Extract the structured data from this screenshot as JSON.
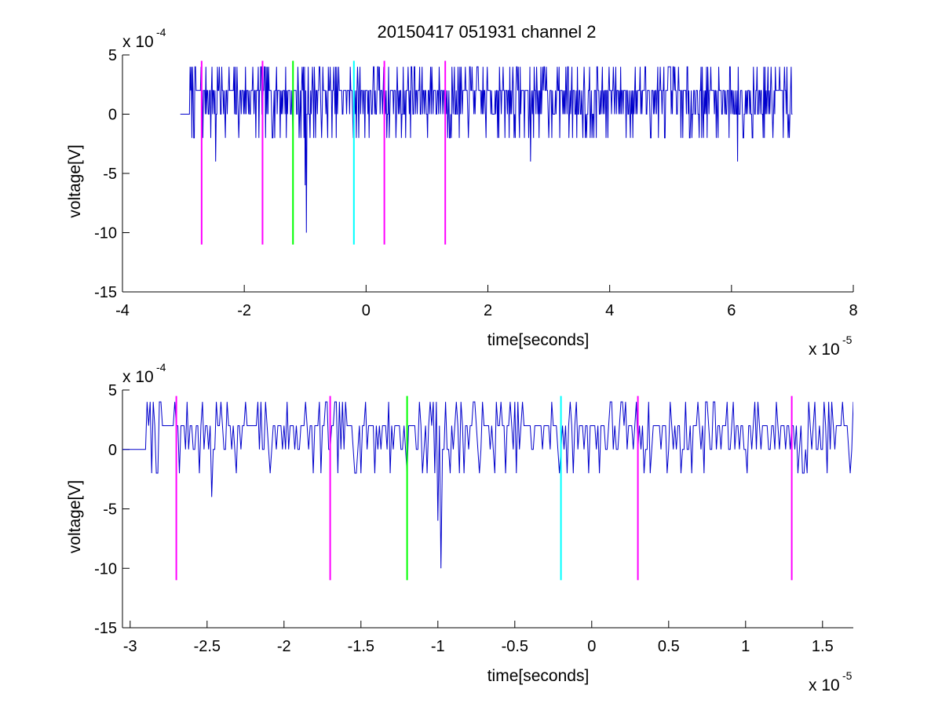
{
  "figure_title": "20150417 051931 channel 2",
  "colors": {
    "signal": "#0000cc",
    "magenta": "#ff00ff",
    "green": "#00ff00",
    "cyan": "#00ffff",
    "axis": "#000000"
  },
  "chart_data": [
    {
      "type": "line",
      "title": "20150417 051931 channel 2",
      "xlabel": "time[seconds]",
      "ylabel": "voltage[V]",
      "xlim": [
        -4e-05,
        8e-05
      ],
      "ylim": [
        -0.0015,
        0.0005
      ],
      "xticks": [
        -4e-05,
        -2e-05,
        0,
        2e-05,
        4e-05,
        6e-05,
        8e-05
      ],
      "xtick_labels": [
        "-4",
        "-2",
        "0",
        "2",
        "4",
        "6",
        "8"
      ],
      "yticks": [
        0.0005,
        0,
        -0.0005,
        -0.001,
        -0.0015
      ],
      "ytick_labels": [
        "5",
        "0",
        "-5",
        "-10",
        "-15"
      ],
      "x_exponent": {
        "base": "x 10",
        "exp": "-5"
      },
      "y_exponent": {
        "base": "x 10",
        "exp": "-4"
      },
      "grid": false,
      "series": [
        {
          "type": "noise-trace",
          "x_start": -2.9e-05,
          "x_end": 7e-05,
          "dx": 1e-07,
          "levels": [
            -0.0002,
            0,
            0.0002,
            0.0004
          ],
          "level_weights": [
            0.1,
            0.25,
            0.5,
            0.15
          ],
          "seed": 7,
          "spikes": [
            {
              "x": -2.47e-05,
              "y": -0.0004
            },
            {
              "x": -9.8e-06,
              "y": -0.001
            },
            {
              "x": -1e-05,
              "y": -0.0006
            },
            {
              "x": 2.7e-05,
              "y": -0.0004
            },
            {
              "x": 6.1e-05,
              "y": -0.0004
            }
          ]
        }
      ],
      "vlines": [
        {
          "x": -2.7e-05,
          "y0": -0.0011,
          "y1": 0.00045,
          "color": "magenta"
        },
        {
          "x": -1.7e-05,
          "y0": -0.0011,
          "y1": 0.00045,
          "color": "magenta"
        },
        {
          "x": -1.2e-05,
          "y0": -0.0011,
          "y1": 0.00045,
          "color": "green"
        },
        {
          "x": -2e-06,
          "y0": -0.0011,
          "y1": 0.00045,
          "color": "cyan"
        },
        {
          "x": 3e-06,
          "y0": -0.0011,
          "y1": 0.00045,
          "color": "magenta"
        },
        {
          "x": 1.3e-05,
          "y0": -0.0011,
          "y1": 0.00045,
          "color": "magenta"
        }
      ]
    },
    {
      "type": "line",
      "title": "",
      "xlabel": "time[seconds]",
      "ylabel": "voltage[V]",
      "xlim": [
        -3.05e-05,
        1.7e-05
      ],
      "ylim": [
        -0.0015,
        0.0005
      ],
      "xticks": [
        -3e-05,
        -2.5e-05,
        -2e-05,
        -1.5e-05,
        -1e-05,
        -5e-06,
        0,
        5e-06,
        1e-05,
        1.5e-05
      ],
      "xtick_labels": [
        "-3",
        "-2.5",
        "-2",
        "-1.5",
        "-1",
        "-0.5",
        "0",
        "0.5",
        "1",
        "1.5"
      ],
      "yticks": [
        0.0005,
        0,
        -0.0005,
        -0.001,
        -0.0015
      ],
      "ytick_labels": [
        "5",
        "0",
        "-5",
        "-10",
        "-15"
      ],
      "x_exponent": {
        "base": "x 10",
        "exp": "-5"
      },
      "y_exponent": {
        "base": "x 10",
        "exp": "-4"
      },
      "grid": false,
      "series": [
        {
          "type": "noise-trace",
          "x_start": -2.9e-05,
          "x_end": 1.7e-05,
          "dx": 1e-07,
          "levels": [
            -0.0002,
            0,
            0.0002,
            0.0004
          ],
          "level_weights": [
            0.1,
            0.25,
            0.5,
            0.15
          ],
          "seed": 7,
          "spikes": [
            {
              "x": -2.47e-05,
              "y": -0.0004
            },
            {
              "x": -9.8e-06,
              "y": -0.001
            },
            {
              "x": -1e-05,
              "y": -0.0006
            }
          ]
        }
      ],
      "vlines": [
        {
          "x": -2.7e-05,
          "y0": -0.0011,
          "y1": 0.00045,
          "color": "magenta"
        },
        {
          "x": -1.7e-05,
          "y0": -0.0011,
          "y1": 0.00045,
          "color": "magenta"
        },
        {
          "x": -1.2e-05,
          "y0": -0.0011,
          "y1": 0.00045,
          "color": "green"
        },
        {
          "x": -2e-06,
          "y0": -0.0011,
          "y1": 0.00045,
          "color": "cyan"
        },
        {
          "x": 3e-06,
          "y0": -0.0011,
          "y1": 0.00045,
          "color": "magenta"
        },
        {
          "x": 1.3e-05,
          "y0": -0.0011,
          "y1": 0.00045,
          "color": "magenta"
        }
      ]
    }
  ]
}
